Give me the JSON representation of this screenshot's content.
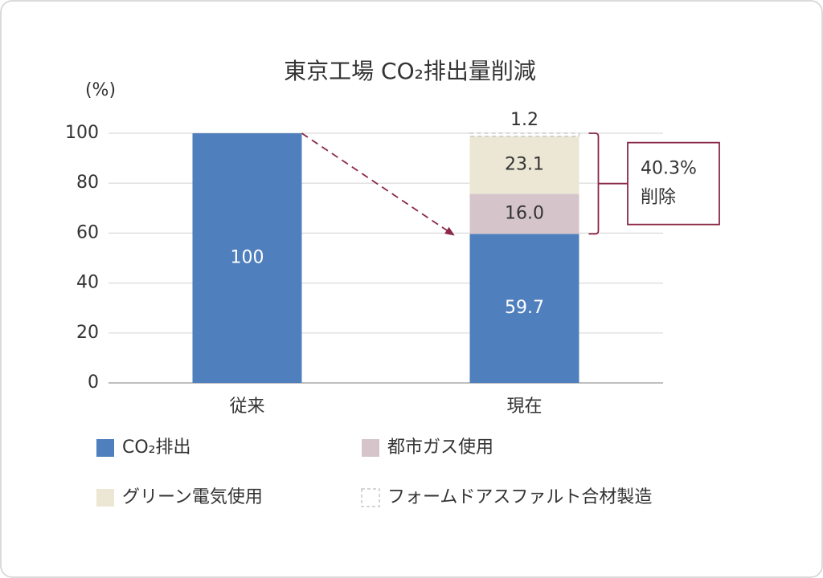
{
  "chart_data": {
    "type": "stacked_bar",
    "title": "東京工場 CO₂排出量削減",
    "y_label": "(%)",
    "categories": [
      "従来",
      "現在"
    ],
    "series": [
      {
        "name": "CO₂排出",
        "color": "#4f7fbd",
        "values": [
          100,
          59.7
        ]
      },
      {
        "name": "都市ガス使用",
        "color": "#d5c5cb",
        "values": [
          null,
          16
        ],
        "value_labels": [
          null,
          "16.0"
        ]
      },
      {
        "name": "グリーン電気使用",
        "color": "#ebe7d4",
        "values": [
          null,
          23.1
        ]
      },
      {
        "name": "フォームドアスファルト合材製造",
        "color": "#ffffff",
        "dashed": true,
        "values": [
          null,
          1.2
        ]
      }
    ],
    "ylim": [
      0,
      100
    ],
    "yticks": [
      0,
      20,
      40,
      60,
      80,
      100
    ],
    "grid": true,
    "annotation": [
      "40.3%",
      "削除"
    ]
  }
}
